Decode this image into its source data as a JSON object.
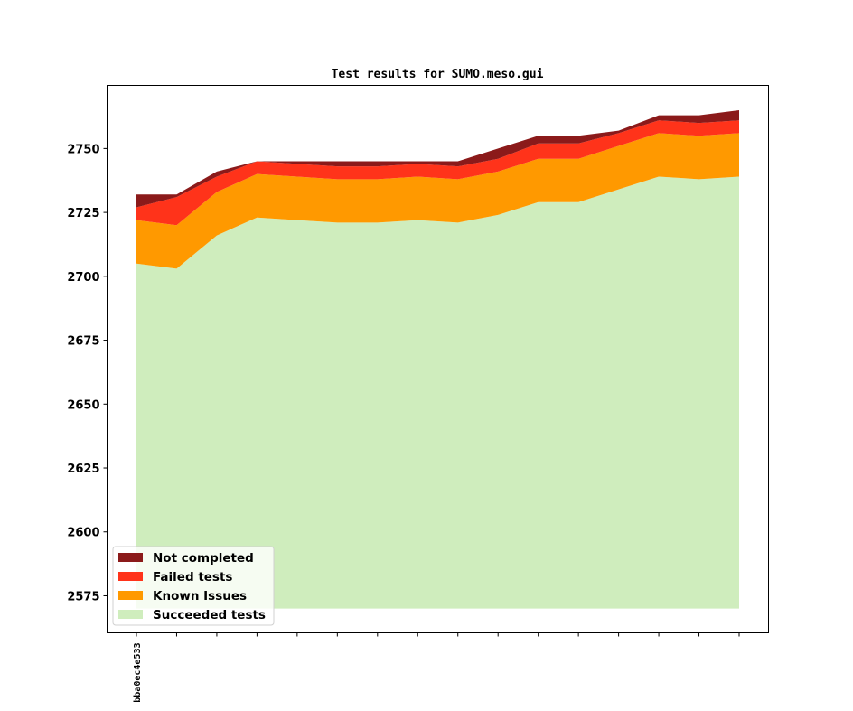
{
  "chart_data": {
    "type": "area",
    "stacked": true,
    "title": "Test results for SUMO.meso.gui",
    "xlabel": "",
    "ylabel": "",
    "x_tick_labels": [
      "bba0ec4e533",
      "",
      "",
      "",
      "",
      "",
      "",
      "",
      "",
      "",
      "",
      "",
      "",
      "",
      "",
      ""
    ],
    "ylim": [
      2560.5,
      2774.7
    ],
    "baseline": 2570,
    "yticks": [
      2575,
      2600,
      2625,
      2650,
      2675,
      2700,
      2725,
      2750
    ],
    "grid": false,
    "legend_position": "lower-left",
    "series": [
      {
        "name": "Succeeded tests",
        "color": "#cfedbd",
        "cumulative_top": [
          2705,
          2703,
          2716,
          2723,
          2722,
          2721,
          2721,
          2722,
          2721,
          2724,
          2729,
          2729,
          2734,
          2739,
          2738,
          2739
        ]
      },
      {
        "name": "Known Issues",
        "color": "#ff9900",
        "cumulative_top": [
          2722,
          2720,
          2733,
          2740,
          2739,
          2738,
          2738,
          2739,
          2738,
          2741,
          2746,
          2746,
          2751,
          2756,
          2755,
          2756
        ]
      },
      {
        "name": "Failed tests",
        "color": "#ff331a",
        "cumulative_top": [
          2727,
          2731,
          2739,
          2745,
          2744,
          2743,
          2743,
          2744,
          2743,
          2746,
          2752,
          2752,
          2756,
          2761,
          2760,
          2761
        ]
      },
      {
        "name": "Not completed",
        "color": "#8b1a1a",
        "cumulative_top": [
          2732,
          2732,
          2741,
          2745,
          2745,
          2745,
          2745,
          2745,
          2745,
          2750,
          2755,
          2755,
          2757,
          2763,
          2763,
          2765
        ]
      }
    ],
    "legend_order": [
      "Not completed",
      "Failed tests",
      "Known Issues",
      "Succeeded tests"
    ]
  }
}
